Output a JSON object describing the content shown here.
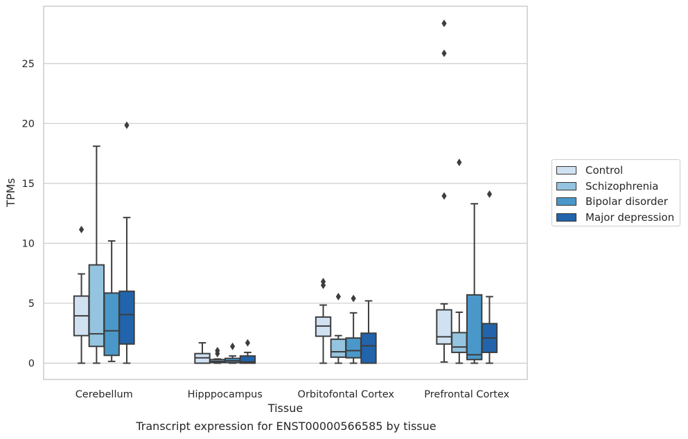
{
  "chart_data": {
    "type": "boxplot",
    "xlabel": "Tissue",
    "ylabel": "TPMs",
    "caption": "Transcript expression for ENST00000566585 by tissue",
    "ylim": [
      -1.3,
      29.5
    ],
    "yticks": [
      0,
      5,
      10,
      15,
      20,
      25
    ],
    "grid": "horizontal",
    "legend_position": "right",
    "categories": [
      "Cerebellum",
      "Hipppocampus",
      "Orbitofontal Cortex",
      "Prefrontal Cortex"
    ],
    "series": [
      {
        "name": "Control",
        "color": "#d0e1f2",
        "boxes": [
          {
            "whisker_low": 0,
            "q1": 2.3,
            "median": 3.95,
            "q3": 5.6,
            "whisker_high": 7.45,
            "outliers": [
              11.15
            ]
          },
          {
            "whisker_low": 0,
            "q1": 0,
            "median": 0.45,
            "q3": 0.8,
            "whisker_high": 1.7,
            "outliers": []
          },
          {
            "whisker_low": 0,
            "q1": 2.25,
            "median": 3.1,
            "q3": 3.85,
            "whisker_high": 4.85,
            "outliers": [
              6.5,
              6.8
            ]
          },
          {
            "whisker_low": 0.1,
            "q1": 1.6,
            "median": 2.2,
            "q3": 4.45,
            "whisker_high": 4.95,
            "outliers": [
              13.95,
              25.85,
              28.35
            ]
          }
        ]
      },
      {
        "name": "Schizophrenia",
        "color": "#94c4df",
        "boxes": [
          {
            "whisker_low": 0,
            "q1": 1.4,
            "median": 2.45,
            "q3": 8.2,
            "whisker_high": 18.1,
            "outliers": []
          },
          {
            "whisker_low": 0,
            "q1": 0.05,
            "median": 0.15,
            "q3": 0.3,
            "whisker_high": 0.35,
            "outliers": [
              0.8,
              1.05
            ]
          },
          {
            "whisker_low": 0,
            "q1": 0.5,
            "median": 0.95,
            "q3": 2.0,
            "whisker_high": 2.3,
            "outliers": [
              5.55
            ]
          },
          {
            "whisker_low": 0,
            "q1": 0.9,
            "median": 1.35,
            "q3": 2.55,
            "whisker_high": 4.25,
            "outliers": [
              16.75
            ]
          }
        ]
      },
      {
        "name": "Bipolar disorder",
        "color": "#4a98c9",
        "boxes": [
          {
            "whisker_low": 0.15,
            "q1": 0.65,
            "median": 2.7,
            "q3": 5.85,
            "whisker_high": 10.2,
            "outliers": []
          },
          {
            "whisker_low": 0,
            "q1": 0.05,
            "median": 0.2,
            "q3": 0.4,
            "whisker_high": 0.6,
            "outliers": [
              1.4
            ]
          },
          {
            "whisker_low": 0,
            "q1": 0.45,
            "median": 1.05,
            "q3": 2.1,
            "whisker_high": 4.2,
            "outliers": [
              5.4
            ]
          },
          {
            "whisker_low": 0,
            "q1": 0.3,
            "median": 0.7,
            "q3": 5.7,
            "whisker_high": 13.3,
            "outliers": []
          }
        ]
      },
      {
        "name": "Major depression",
        "color": "#2164ab",
        "boxes": [
          {
            "whisker_low": 0,
            "q1": 1.6,
            "median": 4.05,
            "q3": 6.0,
            "whisker_high": 12.15,
            "outliers": [
              19.85
            ]
          },
          {
            "whisker_low": 0,
            "q1": 0,
            "median": 0.1,
            "q3": 0.6,
            "whisker_high": 0.9,
            "outliers": [
              1.7
            ]
          },
          {
            "whisker_low": 0,
            "q1": 0,
            "median": 1.45,
            "q3": 2.5,
            "whisker_high": 5.2,
            "outliers": []
          },
          {
            "whisker_low": 0,
            "q1": 0.9,
            "median": 2.1,
            "q3": 3.3,
            "whisker_high": 5.55,
            "outliers": [
              14.1
            ]
          }
        ]
      }
    ]
  }
}
